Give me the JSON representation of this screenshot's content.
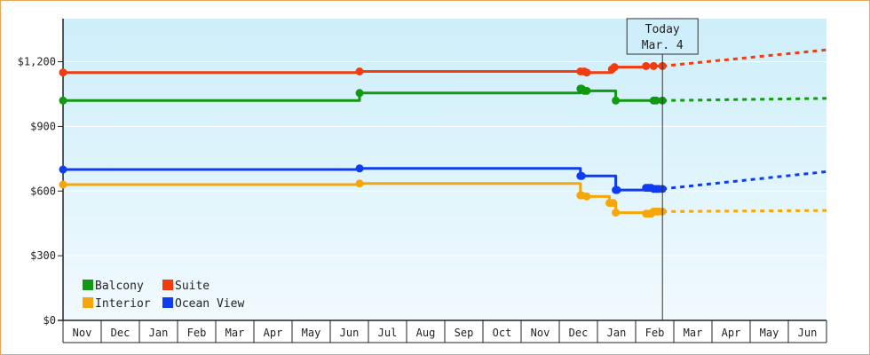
{
  "chart_data": {
    "type": "line",
    "title": "",
    "xlabel": "",
    "ylabel": "",
    "ylim": [
      0,
      1400
    ],
    "y_ticks": [
      {
        "value": 0,
        "label": "$0"
      },
      {
        "value": 300,
        "label": "$300"
      },
      {
        "value": 600,
        "label": "$600"
      },
      {
        "value": 900,
        "label": "$900"
      },
      {
        "value": 1200,
        "label": "$1,200"
      }
    ],
    "x_month_labels": [
      "Nov",
      "Dec",
      "Jan",
      "Feb",
      "Mar",
      "Apr",
      "May",
      "Jun",
      "Jul",
      "Aug",
      "Sep",
      "Oct",
      "Nov",
      "Dec",
      "Jan",
      "Feb",
      "Mar",
      "Apr",
      "May",
      "Jun"
    ],
    "x_range_days": [
      0,
      605
    ],
    "today": {
      "line1": "Today",
      "line2": "Mar. 4",
      "day": 475
    },
    "grid": true,
    "legend_position": "bottom-left",
    "series": [
      {
        "name": "Suite",
        "color": "#f03c0f",
        "points": [
          [
            0,
            1150
          ],
          [
            235,
            1150
          ],
          [
            235,
            1155
          ],
          [
            410,
            1155
          ],
          [
            410,
            1155
          ],
          [
            415,
            1155
          ],
          [
            415,
            1150
          ],
          [
            435,
            1150
          ],
          [
            435,
            1165
          ],
          [
            437,
            1175
          ],
          [
            462,
            1175
          ],
          [
            462,
            1180
          ],
          [
            475,
            1180
          ]
        ],
        "markers": [
          0,
          235,
          410,
          413,
          415,
          435,
          437,
          462,
          468,
          475
        ],
        "projection": [
          [
            475,
            1180
          ],
          [
            605,
            1255
          ]
        ]
      },
      {
        "name": "Balcony",
        "color": "#119911",
        "points": [
          [
            0,
            1020
          ],
          [
            235,
            1020
          ],
          [
            235,
            1055
          ],
          [
            410,
            1055
          ],
          [
            410,
            1075
          ],
          [
            412,
            1065
          ],
          [
            438,
            1065
          ],
          [
            438,
            1020
          ],
          [
            468,
            1020
          ],
          [
            475,
            1020
          ]
        ],
        "markers": [
          0,
          235,
          410,
          411,
          413,
          415,
          438,
          468,
          470,
          475
        ],
        "projection": [
          [
            475,
            1020
          ],
          [
            605,
            1030
          ]
        ]
      },
      {
        "name": "Ocean View",
        "color": "#0f3cf0",
        "points": [
          [
            0,
            700
          ],
          [
            235,
            700
          ],
          [
            235,
            705
          ],
          [
            410,
            705
          ],
          [
            410,
            670
          ],
          [
            438,
            670
          ],
          [
            438,
            605
          ],
          [
            462,
            605
          ],
          [
            462,
            615
          ],
          [
            468,
            610
          ],
          [
            475,
            610
          ]
        ],
        "markers": [
          0,
          235,
          410,
          411,
          438,
          439,
          462,
          464,
          466,
          468,
          470,
          472,
          475
        ],
        "projection": [
          [
            475,
            610
          ],
          [
            605,
            690
          ]
        ]
      },
      {
        "name": "Interior",
        "color": "#f5a60a",
        "points": [
          [
            0,
            630
          ],
          [
            235,
            630
          ],
          [
            235,
            635
          ],
          [
            410,
            635
          ],
          [
            410,
            580
          ],
          [
            415,
            575
          ],
          [
            433,
            575
          ],
          [
            433,
            545
          ],
          [
            438,
            545
          ],
          [
            438,
            500
          ],
          [
            462,
            500
          ],
          [
            462,
            495
          ],
          [
            468,
            505
          ],
          [
            475,
            505
          ]
        ],
        "markers": [
          0,
          235,
          410,
          411,
          415,
          433,
          434,
          436,
          438,
          462,
          464,
          466,
          468,
          470,
          472,
          475
        ],
        "projection": [
          [
            475,
            505
          ],
          [
            605,
            510
          ]
        ]
      }
    ],
    "legend_order": [
      "Balcony",
      "Suite",
      "Interior",
      "Ocean View"
    ]
  }
}
